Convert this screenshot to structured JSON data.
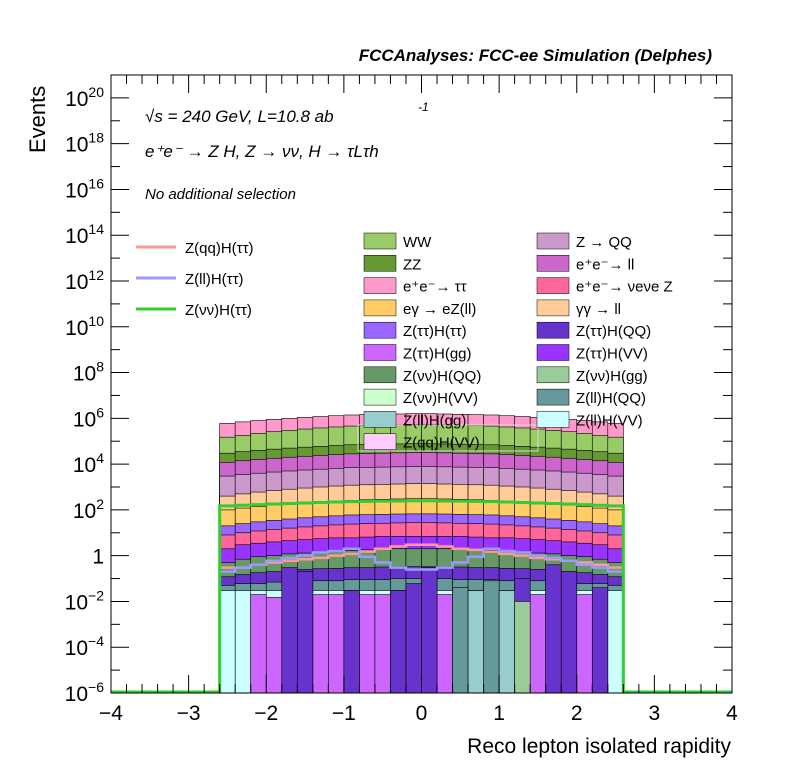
{
  "header": {
    "title": "FCCAnalyses: FCC-ee Simulation (Delphes)"
  },
  "annotations": {
    "energy_line": "√s = 240 GeV, L=10.8 ab",
    "energy_sup": "-1",
    "process": "e⁺e⁻ → Z H, Z → νν, H → τLτh",
    "selection": "No additional selection"
  },
  "colors": {
    "WW": "#99cc66",
    "ZZ": "#669933",
    "ee_tautau": "#ff99cc",
    "egamma_eZll": "#ffcc66",
    "Ztautau_Htautau": "#9966ff",
    "Ztautau_Hgg": "#cc66ff",
    "Znunu_HQQ": "#669966",
    "Znunu_HVV": "#ccffcc",
    "Zll_Hgg": "#99cccc",
    "Zqq_HVV": "#ffccff",
    "Z_QQ": "#cc99cc",
    "ee_ll": "#cc66cc",
    "ee_nunuZ": "#ff6699",
    "gammagamma_ll": "#ffcc99",
    "Ztautau_HQQ": "#6633cc",
    "Ztautau_HVV": "#9933ff",
    "Znunu_Hgg": "#99cc99",
    "Zll_HQQ": "#669999",
    "Zll_HVV": "#ccffff",
    "Zqq_Htautau": "#ff9999",
    "Zll_Htautau": "#9999ff",
    "Znunu_Htautau": "#33cc33"
  },
  "chart_data": {
    "type": "bar",
    "stacked": true,
    "xlabel": "Reco lepton isolated rapidity",
    "ylabel": "Events",
    "xlim": [
      -4,
      4
    ],
    "ylim": [
      1e-06,
      1e+21
    ],
    "log_y": true,
    "x_ticks": [
      "−4",
      "−3",
      "−2",
      "−1",
      "0",
      "1",
      "2",
      "3",
      "4"
    ],
    "y_ticks": [
      {
        "base": "10",
        "exp": "−6",
        "value": 1e-06
      },
      {
        "base": "10",
        "exp": "−4",
        "value": 0.0001
      },
      {
        "base": "10",
        "exp": "−2",
        "value": 0.01
      },
      {
        "base": "1",
        "exp": "",
        "value": 1
      },
      {
        "base": "10",
        "exp": "2",
        "value": 100.0
      },
      {
        "base": "10",
        "exp": "4",
        "value": 10000.0
      },
      {
        "base": "10",
        "exp": "6",
        "value": 1000000.0
      },
      {
        "base": "10",
        "exp": "8",
        "value": 100000000.0
      },
      {
        "base": "10",
        "exp": "10",
        "value": 10000000000.0
      },
      {
        "base": "10",
        "exp": "12",
        "value": 1000000000000.0
      },
      {
        "base": "10",
        "exp": "14",
        "value": 100000000000000.0
      },
      {
        "base": "10",
        "exp": "16",
        "value": 1e+16
      },
      {
        "base": "10",
        "exp": "18",
        "value": 1e+18
      },
      {
        "base": "10",
        "exp": "20",
        "value": 1e+20
      }
    ],
    "bin_range": [
      -2.6,
      2.6
    ],
    "n_bins": 26,
    "stack_boundaries_top": [
      {
        "key": "Zll_HVV",
        "values": [
          0.03,
          0.03,
          0.03,
          0.03,
          0.03,
          0.03,
          0.03,
          0.03,
          0.03,
          0.03,
          0.03,
          0.03,
          0.03,
          0.03,
          0.03,
          0.03,
          0.03,
          0.03,
          0.03,
          0.03,
          0.03,
          0.03,
          0.03,
          0.03,
          0.03,
          0.03
        ]
      },
      {
        "key": "Zll_HQQ",
        "values": [
          0.05,
          0.06,
          0.06,
          0.07,
          0.07,
          0.08,
          0.08,
          0.08,
          0.09,
          0.09,
          0.09,
          0.1,
          0.1,
          0.1,
          0.1,
          0.09,
          0.09,
          0.09,
          0.08,
          0.08,
          0.08,
          0.07,
          0.07,
          0.06,
          0.06,
          0.05
        ]
      },
      {
        "key": "Ztautau_HQQ",
        "values": [
          0.12,
          0.15,
          0.18,
          0.2,
          0.22,
          0.25,
          0.27,
          0.28,
          0.3,
          0.3,
          0.32,
          0.33,
          0.33,
          0.33,
          0.33,
          0.32,
          0.3,
          0.3,
          0.28,
          0.27,
          0.25,
          0.22,
          0.2,
          0.18,
          0.15,
          0.12
        ]
      },
      {
        "key": "Znunu_HQQ",
        "values": [
          0.5,
          0.7,
          0.9,
          1.0,
          1.2,
          1.3,
          1.5,
          1.6,
          1.7,
          1.8,
          1.9,
          2.0,
          2.0,
          2.0,
          2.0,
          1.9,
          1.8,
          1.7,
          1.6,
          1.5,
          1.3,
          1.2,
          1.0,
          0.9,
          0.7,
          0.5
        ]
      },
      {
        "key": "Ztautau_HVV",
        "values": [
          2,
          3,
          3.5,
          4,
          4.5,
          5,
          5.5,
          6,
          6,
          6.5,
          7,
          7,
          7,
          7,
          7,
          7,
          6.5,
          6,
          6,
          5.5,
          5,
          4.5,
          4,
          3.5,
          3,
          2
        ]
      },
      {
        "key": "ee_nunuZ",
        "values": [
          8,
          10,
          12,
          14,
          16,
          18,
          20,
          22,
          24,
          25,
          26,
          27,
          28,
          28,
          27,
          26,
          25,
          24,
          22,
          20,
          18,
          16,
          14,
          12,
          10,
          8
        ]
      },
      {
        "key": "Ztautau_Htautau",
        "values": [
          20,
          25,
          30,
          35,
          40,
          45,
          50,
          55,
          60,
          62,
          64,
          66,
          67,
          67,
          66,
          64,
          62,
          60,
          55,
          50,
          45,
          40,
          35,
          30,
          25,
          20
        ]
      },
      {
        "key": "egamma_eZll",
        "values": [
          100,
          120,
          140,
          160,
          180,
          200,
          220,
          240,
          260,
          280,
          290,
          300,
          310,
          310,
          300,
          290,
          280,
          260,
          240,
          220,
          200,
          180,
          160,
          140,
          120,
          100
        ]
      },
      {
        "key": "gammagamma_ll",
        "values": [
          400,
          500,
          600,
          700,
          800,
          900,
          1000,
          1100,
          1200,
          1250,
          1300,
          1350,
          1400,
          1400,
          1350,
          1300,
          1250,
          1200,
          1100,
          1000,
          900,
          800,
          700,
          600,
          500,
          400
        ]
      },
      {
        "key": "Z_QQ",
        "values": [
          3000,
          3500,
          4000,
          4500,
          5000,
          5500,
          6000,
          6500,
          7000,
          7200,
          7400,
          7600,
          7800,
          7800,
          7600,
          7400,
          7200,
          7000,
          6500,
          6000,
          5500,
          5000,
          4500,
          4000,
          3500,
          3000
        ]
      },
      {
        "key": "ee_ll",
        "values": [
          12000,
          14000,
          16000,
          18000,
          20000,
          22000,
          24000,
          26000,
          28000,
          29000,
          30000,
          31000,
          32000,
          32000,
          31000,
          30000,
          29000,
          28000,
          26000,
          24000,
          22000,
          20000,
          18000,
          16000,
          14000,
          12000
        ]
      },
      {
        "key": "ZZ",
        "values": [
          30000,
          35000,
          40000,
          45000,
          50000,
          55000,
          60000,
          65000,
          70000,
          72000,
          74000,
          76000,
          78000,
          78000,
          76000,
          74000,
          72000,
          70000,
          65000,
          60000,
          55000,
          50000,
          45000,
          40000,
          35000,
          30000
        ]
      },
      {
        "key": "WW",
        "values": [
          150000,
          180000,
          220000,
          260000,
          300000,
          340000,
          380000,
          420000,
          460000,
          490000,
          510000,
          530000,
          540000,
          540000,
          530000,
          510000,
          490000,
          460000,
          420000,
          380000,
          340000,
          300000,
          260000,
          220000,
          180000,
          150000
        ]
      },
      {
        "key": "ee_tautau",
        "values": [
          600000,
          700000,
          800000,
          900000,
          1000000,
          1100000,
          1200000,
          1300000,
          1400000,
          1450000,
          1500000,
          1550000,
          1600000,
          1600000,
          1550000,
          1500000,
          1450000,
          1400000,
          1300000,
          1200000,
          1100000,
          1000000,
          900000,
          800000,
          700000,
          600000
        ]
      }
    ],
    "sparse_bars": [
      {
        "key": "Ztautau_Hgg",
        "bins": [
          2,
          3,
          6,
          7,
          9,
          10,
          14,
          20,
          23
        ],
        "values": [
          0.02,
          0.015,
          0.02,
          0.02,
          0.02,
          0.02,
          0.02,
          0.02,
          0.02
        ]
      },
      {
        "key": "Ztautau_HQQ",
        "bins": [
          4,
          5,
          8,
          11,
          12,
          13,
          16,
          19,
          21,
          22,
          24
        ],
        "values": [
          0.3,
          0.2,
          0.03,
          0.03,
          0.06,
          0.3,
          0.03,
          0.1,
          0.4,
          0.2,
          0.04
        ]
      },
      {
        "key": "Zll_HQQ",
        "bins": [
          15,
          17
        ],
        "values": [
          0.04,
          0.08
        ]
      },
      {
        "key": "Zll_Hgg",
        "bins": [
          16,
          18
        ],
        "values": [
          0.03,
          0.03
        ]
      },
      {
        "key": "Znunu_Hgg",
        "bins": [
          19
        ],
        "values": [
          0.01
        ]
      }
    ],
    "signal_lines": [
      {
        "key": "Zqq_Htautau",
        "name": "Z(qq)H(ττ)",
        "values": [
          0.3,
          0.3,
          0.4,
          0.5,
          0.6,
          0.7,
          0.8,
          1.0,
          1.2,
          1.5,
          2.0,
          2.5,
          3.0,
          3.0,
          2.5,
          2.0,
          1.8,
          1.5,
          1.2,
          1.0,
          0.8,
          0.7,
          0.6,
          0.5,
          0.4,
          0.3
        ]
      },
      {
        "key": "Zll_Htautau",
        "name": "Z(ll)H(ττ)",
        "values": [
          0.2,
          0.3,
          0.4,
          0.6,
          0.8,
          1.0,
          1.4,
          1.6,
          2.0,
          0.9,
          0.5,
          0.3,
          0.25,
          0.25,
          0.3,
          0.5,
          0.9,
          2.0,
          1.6,
          1.4,
          1.0,
          0.8,
          0.6,
          0.4,
          0.3,
          0.2
        ]
      },
      {
        "key": "Znunu_Htautau",
        "name": "Z(νν)H(ττ)",
        "values": [
          150,
          160,
          170,
          180,
          190,
          200,
          210,
          220,
          230,
          235,
          240,
          245,
          250,
          250,
          245,
          240,
          235,
          230,
          220,
          210,
          200,
          190,
          180,
          170,
          160,
          150
        ]
      }
    ],
    "legend_signal": [
      {
        "key": "Zqq_Htautau",
        "label": "Z(qq)H(ττ)"
      },
      {
        "key": "Zll_Htautau",
        "label": "Z(ll)H(ττ)"
      },
      {
        "key": "Znunu_Htautau",
        "label": "Z(νν)H(ττ)"
      }
    ],
    "legend_background_left": [
      {
        "key": "WW",
        "label": "WW"
      },
      {
        "key": "ZZ",
        "label": "ZZ"
      },
      {
        "key": "ee_tautau",
        "label": "e⁺e⁻→ ττ"
      },
      {
        "key": "egamma_eZll",
        "label": "eγ → eZ(ll)"
      },
      {
        "key": "Ztautau_Htautau",
        "label": "Z(ττ)H(ττ)"
      },
      {
        "key": "Ztautau_Hgg",
        "label": "Z(ττ)H(gg)"
      },
      {
        "key": "Znunu_HQQ",
        "label": "Z(νν)H(QQ)"
      },
      {
        "key": "Znunu_HVV",
        "label": "Z(νν)H(VV)"
      },
      {
        "key": "Zll_Hgg",
        "label": "Z(ll)H(gg)"
      },
      {
        "key": "Zqq_HVV",
        "label": "Z(qq)H(VV)"
      }
    ],
    "legend_background_right": [
      {
        "key": "Z_QQ",
        "label": "Z → QQ"
      },
      {
        "key": "ee_ll",
        "label": "e⁺e⁻→ ll"
      },
      {
        "key": "ee_nunuZ",
        "label": "e⁺e⁻→ νeνe Z"
      },
      {
        "key": "gammagamma_ll",
        "label": "γγ → ll"
      },
      {
        "key": "Ztautau_HQQ",
        "label": "Z(ττ)H(QQ)"
      },
      {
        "key": "Ztautau_HVV",
        "label": "Z(ττ)H(VV)"
      },
      {
        "key": "Znunu_Hgg",
        "label": "Z(νν)H(gg)"
      },
      {
        "key": "Zll_HQQ",
        "label": "Z(ll)H(QQ)"
      },
      {
        "key": "Zll_HVV",
        "label": "Z(ll)H(VV)"
      }
    ]
  }
}
